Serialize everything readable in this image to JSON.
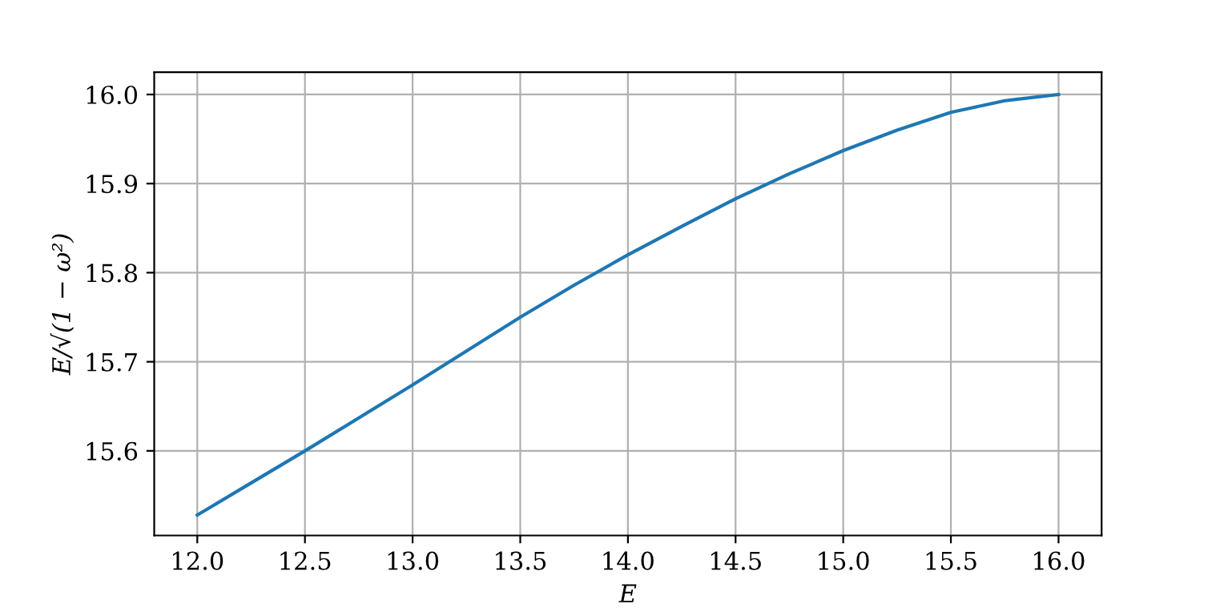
{
  "chart_data": {
    "type": "line",
    "xlabel": "E",
    "ylabel": "E/√(1 − ω²)",
    "x": [
      12.0,
      12.25,
      12.5,
      12.75,
      13.0,
      13.25,
      13.5,
      13.75,
      14.0,
      14.25,
      14.5,
      14.75,
      15.0,
      15.25,
      15.5,
      15.75,
      16.0
    ],
    "series": [
      {
        "color": "#1f77b4",
        "values": [
          15.528,
          15.564,
          15.6,
          15.637,
          15.674,
          15.712,
          15.75,
          15.786,
          15.82,
          15.852,
          15.883,
          15.911,
          15.937,
          15.96,
          15.98,
          15.993,
          16.0
        ]
      }
    ],
    "xlim": [
      11.8,
      16.2
    ],
    "ylim": [
      15.505,
      16.025
    ],
    "xticks": [
      {
        "value": 12,
        "label": "12.0"
      },
      12.5,
      {
        "value": 13,
        "label": "13.0"
      },
      13.5,
      {
        "value": 14,
        "label": "14.0"
      },
      14.5,
      {
        "value": 15,
        "label": "15.0"
      },
      15.5,
      {
        "value": 16,
        "label": "16.0"
      }
    ],
    "yticks": [
      15.6,
      15.7,
      15.8,
      15.9,
      {
        "value": 16,
        "label": "16.0"
      }
    ],
    "grid": true,
    "marker": "none",
    "line_style": "solid"
  }
}
